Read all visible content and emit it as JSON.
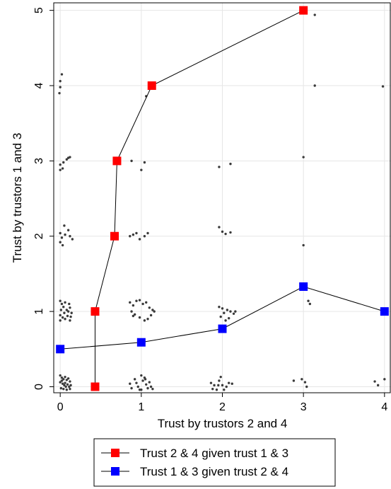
{
  "chart_data": {
    "type": "scatter",
    "xlabel": "Trust by trustors 2 and 4",
    "ylabel": "Trust by trustors 1 and 3",
    "xlim": [
      -0.08,
      4.08
    ],
    "ylim": [
      -0.08,
      5.1
    ],
    "xticks": [
      "0",
      "1",
      "2",
      "3",
      "4"
    ],
    "yticks": [
      "0",
      "1",
      "2",
      "3",
      "4",
      "5"
    ],
    "grid": true,
    "legend_position": "bottom",
    "series": [
      {
        "name": "Trust 2 & 4 given trust 1 & 3",
        "color": "#ff0000",
        "marker": "square",
        "points": [
          [
            0.43,
            0
          ],
          [
            0.43,
            1
          ],
          [
            0.67,
            2
          ],
          [
            0.7,
            3
          ],
          [
            1.13,
            4
          ],
          [
            3.0,
            5
          ]
        ]
      },
      {
        "name": "Trust 1 & 3 given trust 2 & 4",
        "color": "#0000ff",
        "marker": "square",
        "points": [
          [
            0,
            0.5
          ],
          [
            1,
            0.59
          ],
          [
            2,
            0.77
          ],
          [
            3,
            1.33
          ],
          [
            4,
            1
          ]
        ]
      }
    ],
    "scatter_points": [
      [
        0.0,
        0.15
      ],
      [
        0.02,
        0.12
      ],
      [
        0.04,
        0.1
      ],
      [
        0.06,
        0.13
      ],
      [
        0.08,
        0.09
      ],
      [
        0.1,
        0.11
      ],
      [
        0.12,
        0.07
      ],
      [
        0.0,
        0.06
      ],
      [
        0.03,
        0.04
      ],
      [
        0.05,
        0.02
      ],
      [
        0.07,
        0.0
      ],
      [
        0.09,
        0.03
      ],
      [
        0.11,
        0.0
      ],
      [
        0.13,
        0.02
      ],
      [
        0.01,
        -0.02
      ],
      [
        0.04,
        -0.03
      ],
      [
        0.08,
        -0.04
      ],
      [
        0.12,
        -0.03
      ],
      [
        0.02,
        0.08
      ],
      [
        0.06,
        0.05
      ],
      [
        0.86,
        0.04
      ],
      [
        0.88,
        -0.02
      ],
      [
        0.92,
        0.1
      ],
      [
        0.96,
        0.0
      ],
      [
        0.98,
        -0.04
      ],
      [
        1.0,
        0.15
      ],
      [
        1.02,
        0.08
      ],
      [
        1.04,
        0.12
      ],
      [
        1.06,
        0.03
      ],
      [
        1.08,
        -0.02
      ],
      [
        1.1,
        0.06
      ],
      [
        1.12,
        0.0
      ],
      [
        1.14,
        -0.03
      ],
      [
        1.0,
        -0.04
      ],
      [
        0.94,
        0.05
      ],
      [
        1.05,
        0.1
      ],
      [
        1.86,
        0.05
      ],
      [
        1.88,
        -0.03
      ],
      [
        1.9,
        0.02
      ],
      [
        1.93,
        -0.04
      ],
      [
        1.96,
        0.08
      ],
      [
        1.98,
        0.13
      ],
      [
        2.0,
        0.02
      ],
      [
        2.02,
        -0.04
      ],
      [
        2.05,
        0.0
      ],
      [
        2.08,
        0.05
      ],
      [
        2.12,
        0.04
      ],
      [
        1.95,
        0.02
      ],
      [
        2.88,
        0.08
      ],
      [
        2.98,
        0.1
      ],
      [
        3.02,
        0.06
      ],
      [
        3.04,
        0.0
      ],
      [
        3.88,
        0.07
      ],
      [
        3.92,
        0.02
      ],
      [
        4.0,
        0.1
      ],
      [
        0.0,
        1.14
      ],
      [
        0.02,
        1.1
      ],
      [
        0.04,
        1.06
      ],
      [
        0.06,
        1.12
      ],
      [
        0.08,
        1.02
      ],
      [
        0.1,
        1.0
      ],
      [
        0.12,
        1.05
      ],
      [
        0.14,
        0.98
      ],
      [
        0.0,
        0.95
      ],
      [
        0.03,
        0.92
      ],
      [
        0.06,
        0.9
      ],
      [
        0.09,
        0.94
      ],
      [
        0.12,
        0.88
      ],
      [
        0.01,
        1.02
      ],
      [
        0.05,
        0.98
      ],
      [
        0.11,
        1.1
      ],
      [
        0.13,
        0.93
      ],
      [
        0.0,
        0.88
      ],
      [
        0.86,
        1.12
      ],
      [
        0.9,
        1.08
      ],
      [
        0.94,
        1.14
      ],
      [
        0.98,
        1.15
      ],
      [
        1.02,
        1.1
      ],
      [
        1.06,
        1.12
      ],
      [
        1.1,
        1.05
      ],
      [
        1.14,
        1.02
      ],
      [
        1.12,
        0.95
      ],
      [
        1.08,
        0.9
      ],
      [
        1.04,
        0.88
      ],
      [
        0.98,
        0.92
      ],
      [
        0.92,
        0.96
      ],
      [
        0.88,
        1.0
      ],
      [
        0.9,
        0.94
      ],
      [
        1.16,
        1.0
      ],
      [
        1.96,
        1.06
      ],
      [
        2.0,
        1.04
      ],
      [
        2.02,
        0.98
      ],
      [
        2.06,
        1.02
      ],
      [
        2.1,
        1.0
      ],
      [
        2.14,
        0.97
      ],
      [
        1.98,
        0.93
      ],
      [
        2.04,
        0.88
      ],
      [
        2.08,
        0.91
      ],
      [
        2.16,
        1.0
      ],
      [
        3.06,
        1.14
      ],
      [
        3.08,
        1.1
      ],
      [
        0.0,
        2.04
      ],
      [
        0.02,
        1.98
      ],
      [
        0.05,
        2.14
      ],
      [
        0.06,
        2.02
      ],
      [
        0.1,
        2.08
      ],
      [
        0.12,
        2.0
      ],
      [
        0.0,
        1.92
      ],
      [
        0.03,
        1.88
      ],
      [
        0.15,
        1.96
      ],
      [
        0.86,
        2.0
      ],
      [
        0.9,
        2.02
      ],
      [
        0.94,
        2.04
      ],
      [
        1.04,
        2.0
      ],
      [
        1.08,
        2.04
      ],
      [
        0.98,
        1.96
      ],
      [
        1.96,
        2.12
      ],
      [
        2.0,
        2.06
      ],
      [
        2.04,
        2.03
      ],
      [
        2.1,
        2.05
      ],
      [
        3.0,
        1.88
      ],
      [
        0.0,
        2.95
      ],
      [
        0.03,
        2.9
      ],
      [
        0.04,
        2.98
      ],
      [
        0.08,
        3.02
      ],
      [
        0.1,
        3.04
      ],
      [
        0.12,
        3.05
      ],
      [
        0.0,
        2.88
      ],
      [
        0.88,
        3.0
      ],
      [
        1.0,
        2.88
      ],
      [
        1.04,
        2.98
      ],
      [
        1.96,
        2.92
      ],
      [
        2.1,
        2.96
      ],
      [
        3.0,
        3.05
      ],
      [
        0.0,
        4.06
      ],
      [
        0.02,
        4.15
      ],
      [
        0.0,
        3.98
      ],
      [
        -0.01,
        3.9
      ],
      [
        1.06,
        3.86
      ],
      [
        3.14,
        4.0
      ],
      [
        3.98,
        3.99
      ],
      [
        3.14,
        4.94
      ]
    ]
  }
}
